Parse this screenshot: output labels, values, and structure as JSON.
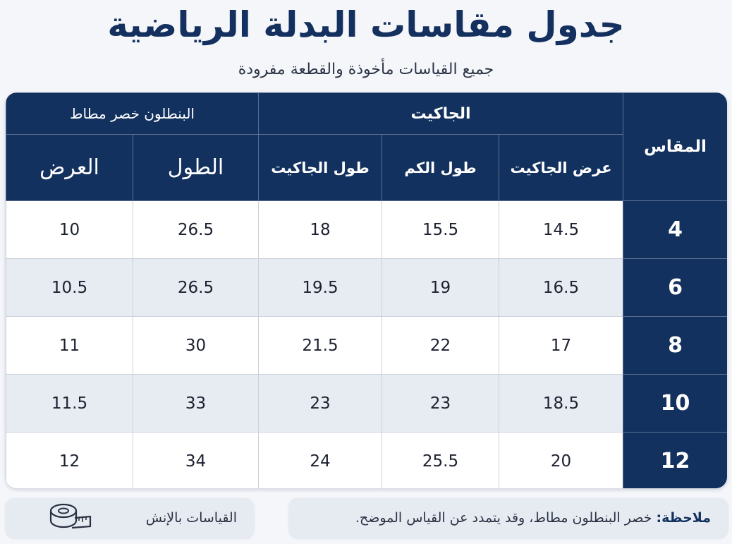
{
  "header": {
    "title": "جدول مقاسات البدلة الرياضية",
    "subtitle": "جميع القياسات مأخوذة والقطعة مفرودة"
  },
  "table": {
    "size_header": "المقاس",
    "jacket_group": "الجاكيت",
    "pants_group": "البنطلون خصر مطاط",
    "columns": {
      "jacket_width": "عرض الجاكيت",
      "sleeve_length": "طول الكم",
      "jacket_length": "طول الجاكيت",
      "pants_length": "الطول",
      "pants_width": "العرض"
    },
    "rows": [
      {
        "size": "4",
        "jacket_width": "14.5",
        "sleeve_length": "15.5",
        "jacket_length": "18",
        "pants_length": "26.5",
        "pants_width": "10"
      },
      {
        "size": "6",
        "jacket_width": "16.5",
        "sleeve_length": "19",
        "jacket_length": "19.5",
        "pants_length": "26.5",
        "pants_width": "10.5"
      },
      {
        "size": "8",
        "jacket_width": "17",
        "sleeve_length": "22",
        "jacket_length": "21.5",
        "pants_length": "30",
        "pants_width": "11"
      },
      {
        "size": "10",
        "jacket_width": "18.5",
        "sleeve_length": "23",
        "jacket_length": "23",
        "pants_length": "33",
        "pants_width": "11.5"
      },
      {
        "size": "12",
        "jacket_width": "20",
        "sleeve_length": "25.5",
        "jacket_length": "24",
        "pants_length": "34",
        "pants_width": "12"
      }
    ]
  },
  "footer": {
    "note_label": "ملاحظة:",
    "note_text": "خصر البنطلون مطاط، وقد يتمدد عن القياس الموضح.",
    "unit_text": "القياسات بالإنش",
    "unit_icon": "measuring-tape-icon"
  },
  "colors": {
    "navy": "#13315e",
    "row_alt": "#e7ecf3",
    "background": "#f4f6fa"
  }
}
